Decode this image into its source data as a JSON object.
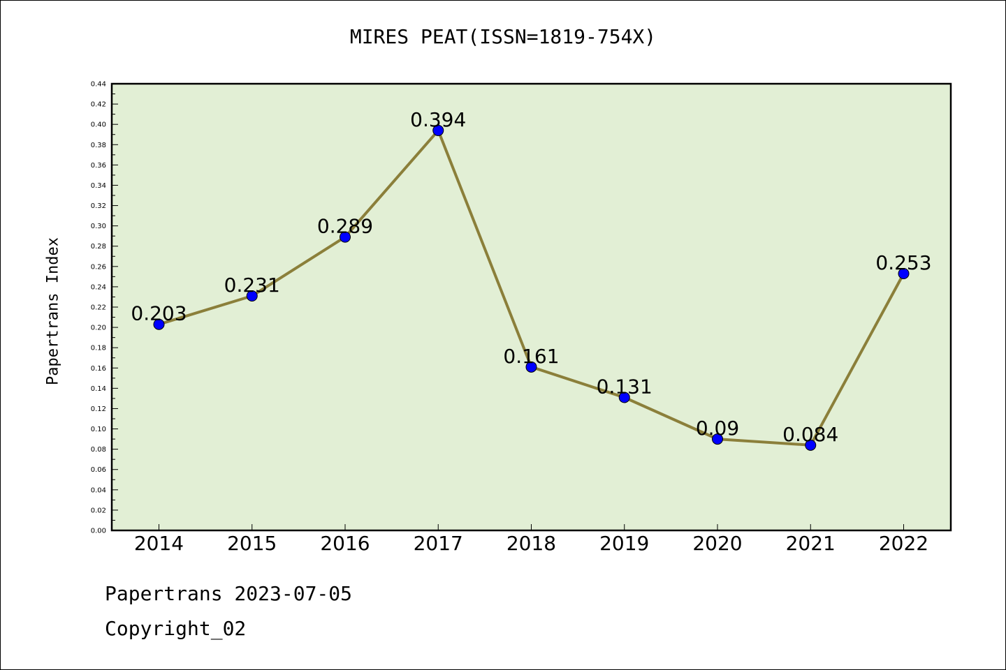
{
  "chart_data": {
    "type": "line",
    "title": "MIRES PEAT(ISSN=1819-754X)",
    "xlabel": "",
    "ylabel": "Papertrans Index",
    "categories": [
      "2014",
      "2015",
      "2016",
      "2017",
      "2018",
      "2019",
      "2020",
      "2021",
      "2022"
    ],
    "series": [
      {
        "values": [
          0.203,
          0.231,
          0.289,
          0.394,
          0.161,
          0.131,
          0.09,
          0.084,
          0.253
        ],
        "data_labels": [
          "0.203",
          "0.231",
          "0.289",
          "0.394",
          "0.161",
          "0.131",
          "0.09",
          "0.084",
          "0.253"
        ]
      }
    ],
    "ylim": [
      0,
      0.44
    ],
    "yticks": [
      "0.00",
      "0.02",
      "0.04",
      "0.06",
      "0.08",
      "0.10",
      "0.12",
      "0.14",
      "0.16",
      "0.18",
      "0.20",
      "0.22",
      "0.24",
      "0.26",
      "0.28",
      "0.30",
      "0.32",
      "0.34",
      "0.36",
      "0.38",
      "0.40",
      "0.42",
      "0.44"
    ],
    "grid": false,
    "colors": {
      "plot_background": "#e2efd5",
      "line": "#8b7f3a",
      "marker": "#0000ff"
    }
  },
  "footer": {
    "date_line": "Papertrans 2023-07-05",
    "copyright": "Copyright_02"
  }
}
